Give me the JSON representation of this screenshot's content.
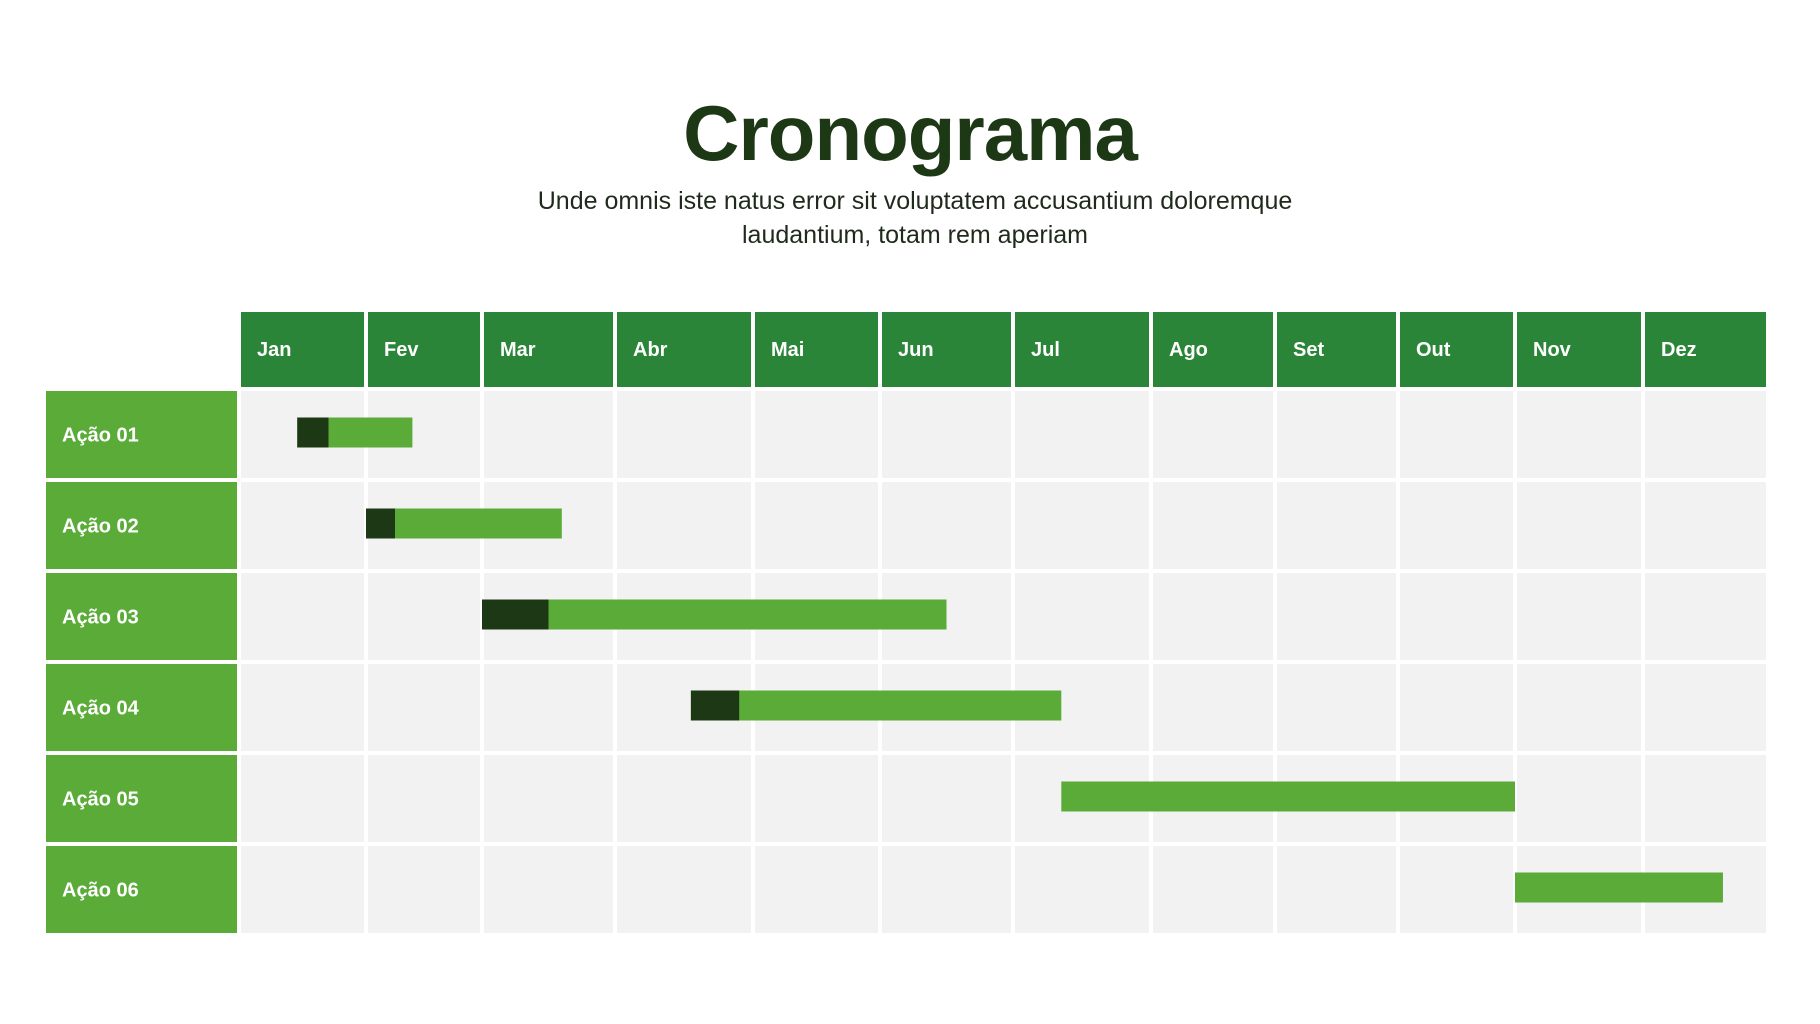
{
  "header": {
    "title": "Cronograma",
    "subtitle": "Unde omnis iste natus error sit voluptatem accusantium doloremque laudantium, totam rem aperiam"
  },
  "chart_data": {
    "type": "gantt",
    "months": [
      "Jan",
      "Fev",
      "Mar",
      "Abr",
      "Mai",
      "Jun",
      "Jul",
      "Ago",
      "Set",
      "Out",
      "Nov",
      "Dez"
    ],
    "tasks": [
      {
        "label": "Ação 01",
        "start": 0.45,
        "done": 0.7,
        "end": 1.4
      },
      {
        "label": "Ação 02",
        "start": 1.0,
        "done": 1.25,
        "end": 2.6
      },
      {
        "label": "Ação 03",
        "start": 2.0,
        "done": 2.5,
        "end": 5.5
      },
      {
        "label": "Ação 04",
        "start": 3.55,
        "done": 3.9,
        "end": 6.35
      },
      {
        "label": "Ação 05",
        "start": 6.35,
        "done": 6.35,
        "end": 10.0
      },
      {
        "label": "Ação 06",
        "start": 10.0,
        "done": 10.0,
        "end": 11.65
      }
    ],
    "colors": {
      "header_bg": "#2b8538",
      "label_bg": "#5aab37",
      "cell_bg": "#f2f2f2",
      "progress_done": "#1c3814",
      "progress_remaining": "#5aab37"
    }
  }
}
